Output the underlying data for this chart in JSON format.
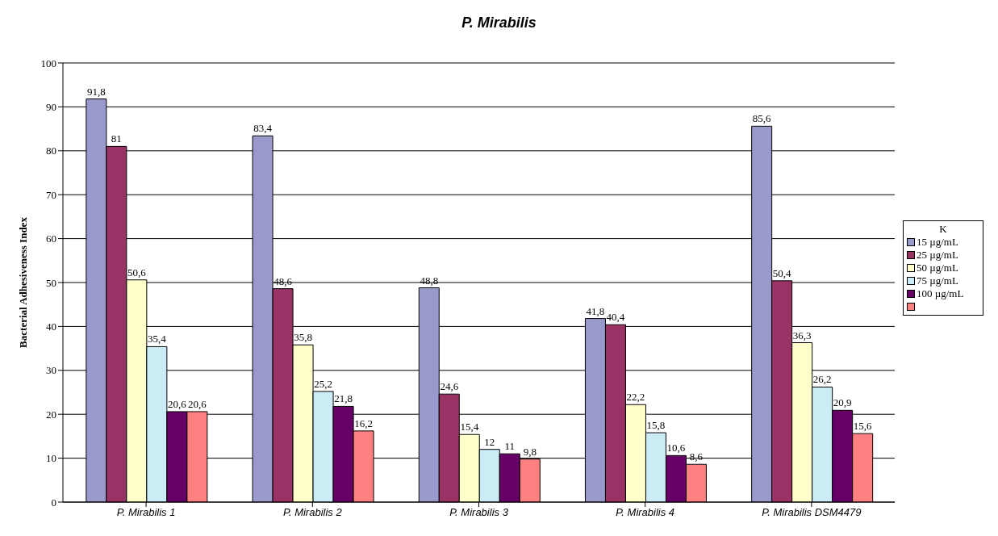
{
  "chart_data": {
    "type": "bar",
    "title": "P. Mirabilis",
    "ylabel": "Bacterial Adhesiveness Index",
    "legend_title": "K",
    "categories": [
      "P. Mirabilis 1",
      "P. Mirabilis 2",
      "P. Mirabilis 3",
      "P. Mirabilis 4",
      "P. Mirabilis DSM4479"
    ],
    "series": [
      {
        "name": "15 µg/mL",
        "color": "#9999cc",
        "values": [
          91.8,
          83.4,
          48.8,
          41.8,
          85.6
        ],
        "value_labels": [
          "91,8",
          "83,4",
          "48,8",
          "41,8",
          "85,6"
        ]
      },
      {
        "name": "25 µg/mL",
        "color": "#993366",
        "values": [
          81,
          48.6,
          24.6,
          40.4,
          50.4
        ],
        "value_labels": [
          "81",
          "48,6",
          "24,6",
          "40,4",
          "50,4"
        ]
      },
      {
        "name": "50 µg/mL",
        "color": "#ffffcc",
        "values": [
          50.6,
          35.8,
          15.4,
          22.2,
          36.3
        ],
        "value_labels": [
          "50,6",
          "35,8",
          "15,4",
          "22,2",
          "36,3"
        ]
      },
      {
        "name": "75 µg/mL",
        "color": "#ccecf5",
        "values": [
          35.4,
          25.2,
          12,
          15.8,
          26.2
        ],
        "value_labels": [
          "35,4",
          "25,2",
          "12",
          "15,8",
          "26,2"
        ]
      },
      {
        "name": "100 µg/mL",
        "color": "#660066",
        "values": [
          20.6,
          21.8,
          11,
          10.6,
          20.9
        ],
        "value_labels": [
          "20,6",
          "21,8",
          "11",
          "10,6",
          "20,9"
        ]
      },
      {
        "color": "#ff8080",
        "values": [
          20.6,
          16.2,
          9.8,
          8.6,
          15.6
        ],
        "value_labels": [
          "20,6",
          "16,2",
          "9,8",
          "8,6",
          "15,6"
        ]
      }
    ],
    "ylim": [
      0,
      100
    ],
    "yticks": [
      0,
      10,
      20,
      30,
      40,
      50,
      60,
      70,
      80,
      90,
      100
    ],
    "grid": "y",
    "legend": "right"
  }
}
